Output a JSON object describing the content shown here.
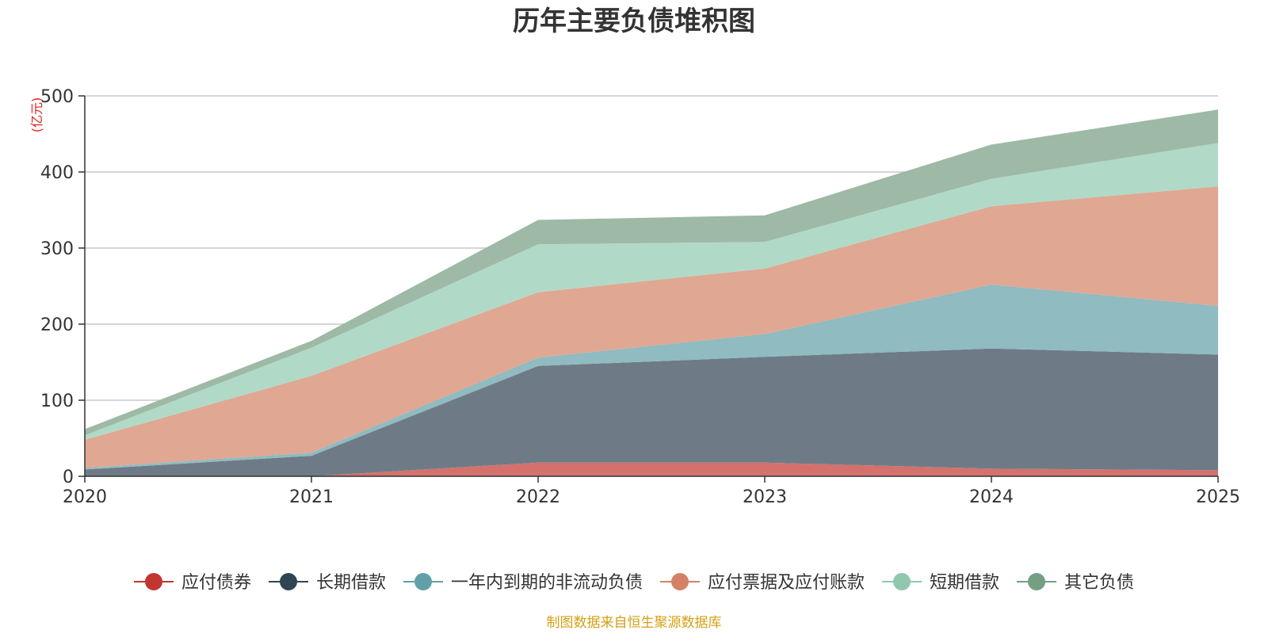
{
  "chart_data": {
    "type": "area",
    "stacked": true,
    "title": "历年主要负债堆积图",
    "unit_label": "(亿元)",
    "x": [
      "2020",
      "2021",
      "2022",
      "2023",
      "2024",
      "2025"
    ],
    "ylim": [
      0,
      500
    ],
    "yticks": [
      "0",
      "100",
      "200",
      "300",
      "400",
      "500"
    ],
    "grid": true,
    "legend_position": "bottom",
    "series": [
      {
        "name": "应付债券",
        "color": "#c23531",
        "fill": "#d4716c",
        "values": [
          0,
          0,
          18,
          18,
          10,
          8
        ]
      },
      {
        "name": "长期借款",
        "color": "#2f4554",
        "fill": "#6e7b87",
        "values": [
          9,
          27,
          127,
          139,
          158,
          152
        ]
      },
      {
        "name": "一年内到期的非流动负债",
        "color": "#61a0a8",
        "fill": "#8fbbc1",
        "values": [
          2,
          4,
          11,
          30,
          84,
          64
        ]
      },
      {
        "name": "应付票据及应付账款",
        "color": "#d48265",
        "fill": "#e0a793",
        "values": [
          37,
          101,
          86,
          86,
          103,
          157
        ]
      },
      {
        "name": "短期借款",
        "color": "#91c7ae",
        "fill": "#b0dac7",
        "values": [
          6,
          37,
          63,
          35,
          36,
          57
        ]
      },
      {
        "name": "其它负债",
        "color": "#749f83",
        "fill": "#9eb9a6",
        "values": [
          8,
          9,
          32,
          35,
          45,
          44
        ]
      }
    ],
    "source": "制图数据来自恒生聚源数据库",
    "source_color": "#d4a017",
    "unit_color": "#e02020"
  }
}
